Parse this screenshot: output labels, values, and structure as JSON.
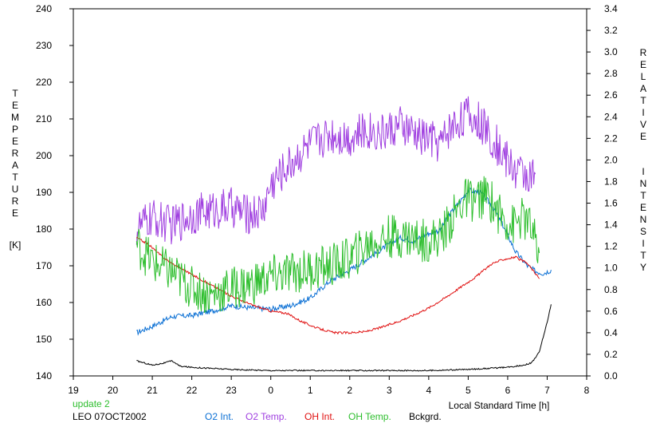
{
  "chart_data": {
    "type": "line",
    "x_ticks": [
      "19",
      "20",
      "21",
      "22",
      "23",
      "0",
      "1",
      "2",
      "3",
      "4",
      "5",
      "6",
      "7",
      "8"
    ],
    "x_range": [
      19,
      32
    ],
    "xlabel": "Local Standard Time [h]",
    "left_axis": {
      "label_letters": [
        "T",
        "E",
        "M",
        "P",
        "E",
        "R",
        "A",
        "T",
        "U",
        "R",
        "E"
      ],
      "unit": "[K]",
      "ylim": [
        140,
        240
      ],
      "ticks": [
        "140",
        "150",
        "160",
        "170",
        "180",
        "190",
        "200",
        "210",
        "220",
        "230",
        "240"
      ]
    },
    "right_axis": {
      "label_word1": [
        "R",
        "E",
        "L",
        "A",
        "T",
        "I",
        "V",
        "E"
      ],
      "label_word2": [
        "I",
        "N",
        "T",
        "E",
        "N",
        "S",
        "I",
        "T",
        "Y"
      ],
      "ylim": [
        0.0,
        3.4
      ],
      "ticks": [
        "0.0",
        "0.2",
        "0.4",
        "0.6",
        "0.8",
        "1.0",
        "1.2",
        "1.4",
        "1.6",
        "1.8",
        "2.0",
        "2.2",
        "2.4",
        "2.6",
        "2.8",
        "3.0",
        "3.2",
        "3.4"
      ]
    },
    "update_note": "update 2",
    "site_date": "LEO 07OCT2002",
    "series": [
      {
        "name": "O2 Int.",
        "axis": "right",
        "color": "#0a6fd4",
        "noise": 0.025,
        "points": [
          [
            20.6,
            0.4
          ],
          [
            21.0,
            0.46
          ],
          [
            21.5,
            0.55
          ],
          [
            22.0,
            0.56
          ],
          [
            22.5,
            0.6
          ],
          [
            23.0,
            0.65
          ],
          [
            23.5,
            0.63
          ],
          [
            24.0,
            0.62
          ],
          [
            24.5,
            0.65
          ],
          [
            25.0,
            0.72
          ],
          [
            25.5,
            0.88
          ],
          [
            26.0,
            0.98
          ],
          [
            26.5,
            1.1
          ],
          [
            27.0,
            1.22
          ],
          [
            27.3,
            1.28
          ],
          [
            27.6,
            1.25
          ],
          [
            28.0,
            1.32
          ],
          [
            28.3,
            1.35
          ],
          [
            28.5,
            1.48
          ],
          [
            28.8,
            1.62
          ],
          [
            29.0,
            1.72
          ],
          [
            29.3,
            1.7
          ],
          [
            29.6,
            1.58
          ],
          [
            29.9,
            1.38
          ],
          [
            30.2,
            1.15
          ],
          [
            30.5,
            1.02
          ],
          [
            30.7,
            0.97
          ],
          [
            30.9,
            0.95
          ],
          [
            31.1,
            0.98
          ]
        ]
      },
      {
        "name": "O2 Temp.",
        "axis": "left",
        "color": "#a040e0",
        "noise": 5.5,
        "points": [
          [
            20.6,
            180
          ],
          [
            21.0,
            183
          ],
          [
            21.5,
            181
          ],
          [
            22.0,
            184
          ],
          [
            22.5,
            185
          ],
          [
            23.0,
            186
          ],
          [
            23.4,
            184
          ],
          [
            23.8,
            185
          ],
          [
            24.0,
            192
          ],
          [
            24.5,
            198
          ],
          [
            25.0,
            203
          ],
          [
            25.5,
            206
          ],
          [
            26.0,
            205
          ],
          [
            26.5,
            207
          ],
          [
            26.8,
            206
          ],
          [
            27.0,
            207
          ],
          [
            27.3,
            208
          ],
          [
            27.6,
            206
          ],
          [
            27.8,
            205
          ],
          [
            28.0,
            205
          ],
          [
            28.3,
            203
          ],
          [
            28.5,
            207
          ],
          [
            28.8,
            210
          ],
          [
            29.0,
            211
          ],
          [
            29.3,
            209
          ],
          [
            29.6,
            205
          ],
          [
            29.9,
            200
          ],
          [
            30.2,
            196
          ],
          [
            30.5,
            195
          ],
          [
            30.7,
            194
          ]
        ]
      },
      {
        "name": "OH Int.",
        "axis": "right",
        "color": "#e01010",
        "noise": 0.01,
        "points": [
          [
            20.6,
            1.28
          ],
          [
            20.9,
            1.22
          ],
          [
            21.2,
            1.12
          ],
          [
            21.5,
            1.04
          ],
          [
            22.0,
            0.94
          ],
          [
            22.5,
            0.84
          ],
          [
            23.0,
            0.74
          ],
          [
            23.5,
            0.66
          ],
          [
            24.0,
            0.6
          ],
          [
            24.4,
            0.58
          ],
          [
            24.8,
            0.5
          ],
          [
            25.2,
            0.44
          ],
          [
            25.6,
            0.4
          ],
          [
            26.0,
            0.4
          ],
          [
            26.4,
            0.41
          ],
          [
            26.8,
            0.45
          ],
          [
            27.2,
            0.5
          ],
          [
            27.6,
            0.56
          ],
          [
            28.0,
            0.63
          ],
          [
            28.4,
            0.72
          ],
          [
            28.8,
            0.82
          ],
          [
            29.2,
            0.92
          ],
          [
            29.6,
            1.04
          ],
          [
            29.9,
            1.08
          ],
          [
            30.2,
            1.1
          ],
          [
            30.5,
            1.04
          ],
          [
            30.7,
            0.95
          ],
          [
            30.8,
            0.9
          ]
        ]
      },
      {
        "name": "OH Temp.",
        "axis": "left",
        "color": "#2dbe2d",
        "noise": 6.0,
        "points": [
          [
            20.6,
            176
          ],
          [
            21.0,
            171
          ],
          [
            21.5,
            168
          ],
          [
            22.0,
            164
          ],
          [
            22.5,
            162
          ],
          [
            23.0,
            164
          ],
          [
            23.5,
            165
          ],
          [
            24.0,
            167
          ],
          [
            24.5,
            168
          ],
          [
            25.0,
            169
          ],
          [
            25.5,
            170
          ],
          [
            26.0,
            172
          ],
          [
            26.5,
            176
          ],
          [
            27.0,
            178
          ],
          [
            27.5,
            178
          ],
          [
            27.8,
            177
          ],
          [
            28.0,
            177
          ],
          [
            28.3,
            178
          ],
          [
            28.6,
            183
          ],
          [
            28.9,
            188
          ],
          [
            29.2,
            188
          ],
          [
            29.5,
            189
          ],
          [
            29.8,
            184
          ],
          [
            30.1,
            181
          ],
          [
            30.4,
            183
          ],
          [
            30.6,
            180
          ],
          [
            30.8,
            172
          ]
        ]
      },
      {
        "name": "Bckgrd.",
        "axis": "right",
        "color": "#000000",
        "noise": 0.006,
        "points": [
          [
            20.6,
            0.14
          ],
          [
            21.0,
            0.1
          ],
          [
            21.3,
            0.12
          ],
          [
            21.5,
            0.14
          ],
          [
            21.7,
            0.09
          ],
          [
            22.0,
            0.08
          ],
          [
            22.5,
            0.07
          ],
          [
            23.0,
            0.06
          ],
          [
            24.0,
            0.05
          ],
          [
            25.0,
            0.05
          ],
          [
            26.0,
            0.05
          ],
          [
            27.0,
            0.05
          ],
          [
            28.0,
            0.05
          ],
          [
            29.0,
            0.06
          ],
          [
            30.0,
            0.08
          ],
          [
            30.4,
            0.1
          ],
          [
            30.6,
            0.12
          ],
          [
            30.8,
            0.22
          ],
          [
            30.9,
            0.36
          ],
          [
            31.0,
            0.5
          ],
          [
            31.1,
            0.66
          ]
        ]
      }
    ]
  }
}
